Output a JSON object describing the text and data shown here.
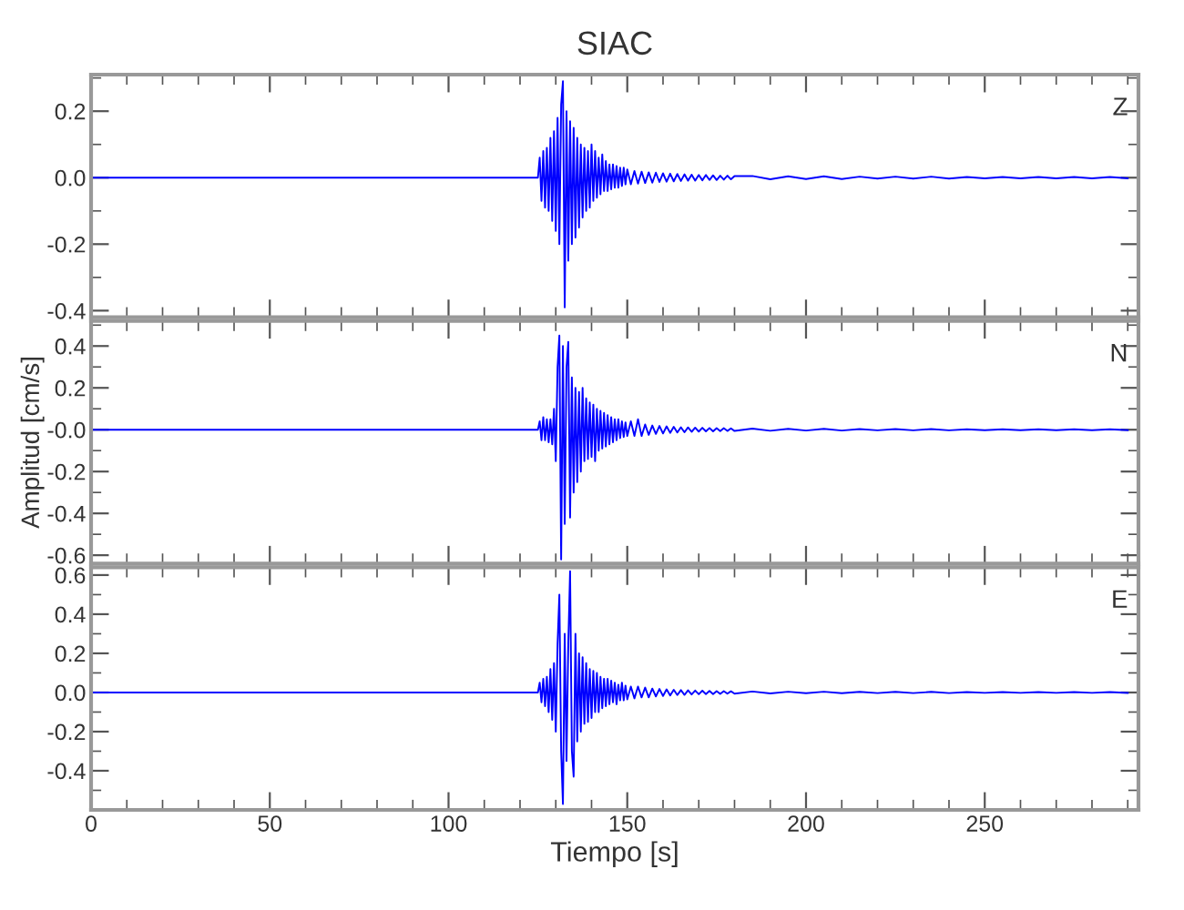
{
  "chart_data": [
    {
      "type": "line",
      "title": "SIAC",
      "annotations": [
        "Z"
      ],
      "tick_labels": "y",
      "x": [
        0,
        124,
        125,
        125.5,
        126,
        126.5,
        127,
        127.5,
        128,
        128.5,
        129,
        129.5,
        130,
        130.5,
        131,
        131.5,
        132,
        132.5,
        133,
        133.5,
        134,
        134.5,
        135,
        135.5,
        136,
        136.5,
        137,
        137.5,
        138,
        138.5,
        139,
        139.5,
        140,
        140.5,
        141,
        141.5,
        142,
        142.5,
        143,
        143.5,
        144,
        144.5,
        145,
        145.5,
        146,
        146.5,
        147,
        147.5,
        148,
        148.5,
        149,
        149.5,
        150,
        151,
        152,
        153,
        154,
        155,
        156,
        157,
        158,
        159,
        160,
        161,
        162,
        163,
        164,
        165,
        166,
        167,
        168,
        169,
        170,
        171,
        172,
        173,
        174,
        175,
        176,
        177,
        178,
        179,
        180,
        185,
        190,
        195,
        200,
        205,
        210,
        215,
        220,
        225,
        230,
        235,
        240,
        245,
        250,
        255,
        260,
        265,
        270,
        275,
        280,
        285,
        290
      ],
      "series": [
        {
          "color": "#0000ff",
          "values": [
            0,
            0,
            0.0,
            0.06,
            -0.07,
            0.08,
            -0.09,
            0.09,
            -0.1,
            0.12,
            -0.13,
            0.14,
            -0.16,
            0.18,
            -0.2,
            0.22,
            0.29,
            -0.39,
            0.2,
            -0.25,
            0.17,
            -0.2,
            0.15,
            -0.18,
            0.12,
            -0.15,
            0.1,
            -0.12,
            0.09,
            -0.1,
            0.08,
            -0.09,
            0.1,
            -0.07,
            0.08,
            -0.06,
            0.06,
            -0.05,
            0.07,
            -0.04,
            0.05,
            -0.04,
            0.04,
            -0.035,
            0.04,
            -0.03,
            0.035,
            -0.03,
            0.03,
            -0.025,
            0.03,
            -0.02,
            0.025,
            -0.02,
            0.02,
            -0.018,
            0.018,
            -0.016,
            0.016,
            -0.015,
            0.015,
            -0.013,
            0.013,
            -0.012,
            0.012,
            -0.011,
            0.011,
            -0.01,
            0.01,
            -0.009,
            0.009,
            -0.009,
            0.008,
            -0.008,
            0.008,
            -0.007,
            0.007,
            -0.007,
            0.006,
            -0.006,
            0.006,
            -0.005,
            0.005,
            0.005,
            -0.005,
            0.004,
            -0.004,
            0.004,
            -0.004,
            0.003,
            -0.003,
            0.003,
            -0.003,
            0.003,
            -0.003,
            0.002,
            -0.002,
            0.002,
            -0.002,
            0.002,
            -0.002,
            0.002,
            -0.002,
            0.002,
            -0.002
          ]
        }
      ],
      "xlim": [
        0,
        293
      ],
      "ylim": [
        -0.42,
        0.31
      ],
      "xticks": [
        0,
        {
          "value": 10,
          "label": null
        },
        {
          "value": 20,
          "label": null
        },
        {
          "value": 30,
          "label": null
        },
        {
          "value": 40,
          "label": null
        },
        50,
        {
          "value": 60,
          "label": null
        },
        {
          "value": 70,
          "label": null
        },
        {
          "value": 80,
          "label": null
        },
        {
          "value": 90,
          "label": null
        },
        100,
        {
          "value": 110,
          "label": null
        },
        {
          "value": 120,
          "label": null
        },
        {
          "value": 130,
          "label": null
        },
        {
          "value": 140,
          "label": null
        },
        150,
        {
          "value": 160,
          "label": null
        },
        {
          "value": 170,
          "label": null
        },
        {
          "value": 180,
          "label": null
        },
        {
          "value": 190,
          "label": null
        },
        200,
        {
          "value": 210,
          "label": null
        },
        {
          "value": 220,
          "label": null
        },
        {
          "value": 230,
          "label": null
        },
        {
          "value": 240,
          "label": null
        },
        250,
        {
          "value": 260,
          "label": null
        },
        {
          "value": 270,
          "label": null
        },
        {
          "value": 280,
          "label": null
        },
        {
          "value": 290,
          "label": null
        }
      ],
      "yticks": [
        {
          "value": -0.4,
          "label": "-0.4"
        },
        {
          "value": -0.3,
          "label": null
        },
        {
          "value": -0.2,
          "label": "-0.2"
        },
        {
          "value": -0.1,
          "label": null
        },
        {
          "value": 0,
          "label": "0.0"
        },
        {
          "value": 0.1,
          "label": null
        },
        {
          "value": 0.2,
          "label": "0.2"
        },
        {
          "value": 0.3,
          "label": null
        }
      ]
    },
    {
      "type": "line",
      "ylabel": "Amplitud [cm/s]",
      "annotations": [
        "N"
      ],
      "tick_labels": "y",
      "x": [
        0,
        124,
        125,
        125.5,
        126,
        126.5,
        127,
        127.5,
        128,
        128.5,
        129,
        129.5,
        130,
        130.5,
        131,
        131.5,
        132,
        132.5,
        133,
        133.5,
        134,
        134.5,
        135,
        135.5,
        136,
        136.5,
        137,
        137.5,
        138,
        138.5,
        139,
        139.5,
        140,
        140.5,
        141,
        141.5,
        142,
        142.5,
        143,
        143.5,
        144,
        144.5,
        145,
        145.5,
        146,
        146.5,
        147,
        147.5,
        148,
        148.5,
        149,
        149.5,
        150,
        151,
        152,
        153,
        154,
        155,
        156,
        157,
        158,
        159,
        160,
        161,
        162,
        163,
        164,
        165,
        166,
        167,
        168,
        169,
        170,
        171,
        172,
        173,
        174,
        175,
        176,
        177,
        178,
        179,
        180,
        185,
        190,
        195,
        200,
        205,
        210,
        215,
        220,
        225,
        230,
        235,
        240,
        245,
        250,
        255,
        260,
        265,
        270,
        275,
        280,
        285,
        290
      ],
      "series": [
        {
          "color": "#0000ff",
          "values": [
            0,
            0,
            0.0,
            0.04,
            -0.05,
            0.06,
            -0.05,
            0.05,
            -0.06,
            0.05,
            -0.07,
            0.1,
            -0.15,
            0.3,
            0.45,
            -0.62,
            0.4,
            -0.45,
            0.3,
            0.42,
            -0.42,
            0.25,
            -0.3,
            0.2,
            -0.25,
            0.18,
            -0.2,
            0.2,
            -0.15,
            0.15,
            -0.14,
            0.13,
            -0.13,
            0.12,
            -0.15,
            0.1,
            -0.1,
            0.09,
            -0.09,
            0.08,
            -0.08,
            0.07,
            -0.07,
            0.06,
            -0.06,
            0.05,
            -0.05,
            0.05,
            -0.04,
            0.04,
            -0.035,
            0.035,
            -0.03,
            0.04,
            -0.03,
            0.05,
            -0.03,
            0.025,
            -0.025,
            0.02,
            -0.02,
            0.018,
            -0.018,
            0.016,
            -0.015,
            0.014,
            -0.013,
            0.012,
            -0.012,
            0.011,
            -0.01,
            0.01,
            -0.009,
            0.009,
            -0.008,
            0.008,
            -0.008,
            0.007,
            -0.007,
            0.007,
            -0.006,
            0.006,
            -0.006,
            0.005,
            -0.005,
            0.004,
            -0.004,
            0.004,
            -0.004,
            0.003,
            -0.003,
            0.003,
            -0.003,
            0.003,
            -0.003,
            0.002,
            -0.002,
            0.002,
            -0.002,
            0.002,
            -0.002,
            0.002,
            -0.002,
            0.002,
            -0.002
          ]
        }
      ],
      "xlim": [
        0,
        293
      ],
      "ylim": [
        -0.64,
        0.52
      ],
      "xticks": [
        0,
        {
          "value": 10,
          "label": null
        },
        {
          "value": 20,
          "label": null
        },
        {
          "value": 30,
          "label": null
        },
        {
          "value": 40,
          "label": null
        },
        50,
        {
          "value": 60,
          "label": null
        },
        {
          "value": 70,
          "label": null
        },
        {
          "value": 80,
          "label": null
        },
        {
          "value": 90,
          "label": null
        },
        100,
        {
          "value": 110,
          "label": null
        },
        {
          "value": 120,
          "label": null
        },
        {
          "value": 130,
          "label": null
        },
        {
          "value": 140,
          "label": null
        },
        150,
        {
          "value": 160,
          "label": null
        },
        {
          "value": 170,
          "label": null
        },
        {
          "value": 180,
          "label": null
        },
        {
          "value": 190,
          "label": null
        },
        200,
        {
          "value": 210,
          "label": null
        },
        {
          "value": 220,
          "label": null
        },
        {
          "value": 230,
          "label": null
        },
        {
          "value": 240,
          "label": null
        },
        250,
        {
          "value": 260,
          "label": null
        },
        {
          "value": 270,
          "label": null
        },
        {
          "value": 280,
          "label": null
        },
        {
          "value": 290,
          "label": null
        }
      ],
      "yticks": [
        {
          "value": -0.6,
          "label": "-0.6"
        },
        {
          "value": -0.5,
          "label": null
        },
        {
          "value": -0.4,
          "label": "-0.4"
        },
        {
          "value": -0.3,
          "label": null
        },
        {
          "value": -0.2,
          "label": "-0.2"
        },
        {
          "value": -0.1,
          "label": null
        },
        {
          "value": 0,
          "label": "-0.0"
        },
        {
          "value": 0.1,
          "label": null
        },
        {
          "value": 0.2,
          "label": "0.2"
        },
        {
          "value": 0.3,
          "label": null
        },
        {
          "value": 0.4,
          "label": "0.4"
        },
        {
          "value": 0.5,
          "label": null
        }
      ]
    },
    {
      "type": "line",
      "xlabel": "Tiempo [s]",
      "annotations": [
        "E"
      ],
      "x": [
        0,
        124,
        125,
        125.5,
        126,
        126.5,
        127,
        127.5,
        128,
        128.5,
        129,
        129.5,
        130,
        130.5,
        131,
        131.5,
        132,
        132.5,
        133,
        133.5,
        134,
        134.5,
        135,
        135.5,
        136,
        136.5,
        137,
        137.5,
        138,
        138.5,
        139,
        139.5,
        140,
        140.5,
        141,
        141.5,
        142,
        142.5,
        143,
        143.5,
        144,
        144.5,
        145,
        145.5,
        146,
        146.5,
        147,
        147.5,
        148,
        148.5,
        149,
        149.5,
        150,
        151,
        152,
        153,
        154,
        155,
        156,
        157,
        158,
        159,
        160,
        161,
        162,
        163,
        164,
        165,
        166,
        167,
        168,
        169,
        170,
        171,
        172,
        173,
        174,
        175,
        176,
        177,
        178,
        179,
        180,
        185,
        190,
        195,
        200,
        205,
        210,
        215,
        220,
        225,
        230,
        235,
        240,
        245,
        250,
        255,
        260,
        265,
        270,
        275,
        280,
        285,
        290
      ],
      "series": [
        {
          "color": "#0000ff",
          "values": [
            0,
            0,
            0.0,
            0.05,
            -0.05,
            0.07,
            -0.07,
            0.08,
            -0.1,
            0.12,
            -0.14,
            0.15,
            -0.2,
            0.25,
            0.5,
            -0.3,
            -0.57,
            0.3,
            -0.35,
            0.25,
            0.62,
            -0.3,
            -0.43,
            0.3,
            -0.25,
            0.2,
            -0.2,
            0.18,
            -0.16,
            0.15,
            -0.15,
            0.12,
            -0.13,
            0.11,
            -0.1,
            0.1,
            -0.1,
            0.08,
            -0.08,
            0.07,
            -0.07,
            0.07,
            -0.06,
            0.06,
            -0.05,
            0.05,
            -0.06,
            0.04,
            -0.04,
            0.05,
            -0.04,
            0.035,
            -0.035,
            0.03,
            -0.03,
            0.03,
            -0.025,
            0.025,
            -0.025,
            0.02,
            -0.02,
            0.018,
            -0.018,
            0.016,
            -0.015,
            0.014,
            -0.013,
            0.012,
            -0.012,
            0.011,
            -0.01,
            0.01,
            -0.009,
            0.009,
            -0.008,
            0.008,
            -0.008,
            0.007,
            -0.007,
            0.007,
            -0.006,
            0.006,
            -0.006,
            0.005,
            -0.005,
            0.004,
            -0.004,
            0.004,
            -0.004,
            0.003,
            -0.003,
            0.003,
            -0.003,
            0.003,
            -0.003,
            0.002,
            -0.002,
            0.002,
            -0.002,
            0.002,
            -0.002,
            0.002,
            -0.002,
            0.002,
            -0.002
          ]
        }
      ],
      "xlim": [
        0,
        293
      ],
      "ylim": [
        -0.6,
        0.64
      ],
      "xticks": [
        0,
        {
          "value": 10,
          "label": null
        },
        {
          "value": 20,
          "label": null
        },
        {
          "value": 30,
          "label": null
        },
        {
          "value": 40,
          "label": null
        },
        50,
        {
          "value": 60,
          "label": null
        },
        {
          "value": 70,
          "label": null
        },
        {
          "value": 80,
          "label": null
        },
        {
          "value": 90,
          "label": null
        },
        100,
        {
          "value": 110,
          "label": null
        },
        {
          "value": 120,
          "label": null
        },
        {
          "value": 130,
          "label": null
        },
        {
          "value": 140,
          "label": null
        },
        150,
        {
          "value": 160,
          "label": null
        },
        {
          "value": 170,
          "label": null
        },
        {
          "value": 180,
          "label": null
        },
        {
          "value": 190,
          "label": null
        },
        200,
        {
          "value": 210,
          "label": null
        },
        {
          "value": 220,
          "label": null
        },
        {
          "value": 230,
          "label": null
        },
        {
          "value": 240,
          "label": null
        },
        250,
        {
          "value": 260,
          "label": null
        },
        {
          "value": 270,
          "label": null
        },
        {
          "value": 280,
          "label": null
        },
        {
          "value": 290,
          "label": null
        }
      ],
      "yticks": [
        {
          "value": -0.5,
          "label": null
        },
        {
          "value": -0.4,
          "label": "-0.4"
        },
        {
          "value": -0.3,
          "label": null
        },
        {
          "value": -0.2,
          "label": "-0.2"
        },
        {
          "value": -0.1,
          "label": null
        },
        {
          "value": 0,
          "label": "0.0"
        },
        {
          "value": 0.1,
          "label": null
        },
        {
          "value": 0.2,
          "label": "0.2"
        },
        {
          "value": 0.3,
          "label": null
        },
        {
          "value": 0.4,
          "label": "0.4"
        },
        {
          "value": 0.5,
          "label": null
        },
        {
          "value": 0.6,
          "label": "0.6"
        }
      ]
    }
  ]
}
